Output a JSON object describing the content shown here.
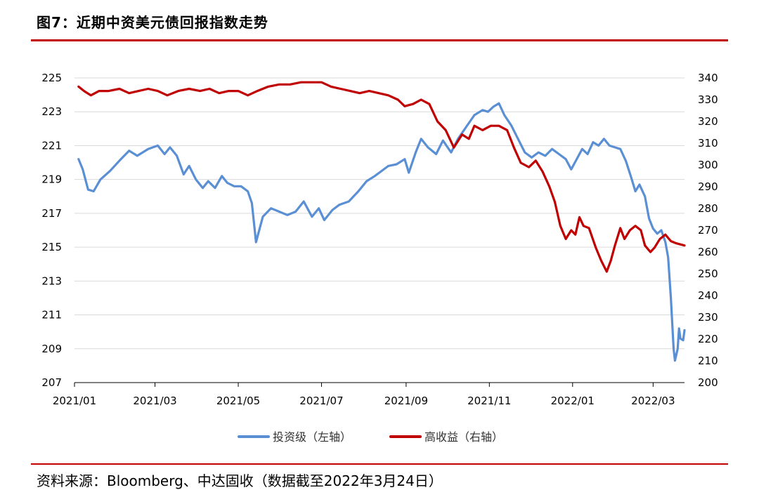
{
  "header": {
    "title": "图7：近期中资美元债回报指数走势"
  },
  "footer": {
    "source": "资料来源：Bloomberg、中达固收（数据截至2022年3月24日）"
  },
  "colors": {
    "accent_rule": "#c00000",
    "investment_grade": "#5b8fd4",
    "high_yield": "#c00000",
    "grid": "#d9d9d9"
  },
  "chart_data": {
    "type": "line",
    "title": "",
    "xlabel": "",
    "ylabel": "",
    "grid": true,
    "legend_position": "bottom-center",
    "x_ticks": [
      "2021/01",
      "2021/03",
      "2021/05",
      "2021/07",
      "2021/09",
      "2021/11",
      "2022/01",
      "2022/03"
    ],
    "x_tick_dates": [
      "2021-01-01",
      "2021-03-01",
      "2021-05-01",
      "2021-07-01",
      "2021-09-01",
      "2021-11-01",
      "2022-01-01",
      "2022-03-01"
    ],
    "x_range": [
      "2021-01-01",
      "2022-03-24"
    ],
    "y_left": {
      "range": [
        207,
        225
      ],
      "ticks": [
        "207",
        "209",
        "211",
        "213",
        "215",
        "217",
        "219",
        "221",
        "223",
        "225"
      ]
    },
    "y_right": {
      "range": [
        200,
        340
      ],
      "ticks": [
        "200",
        "210",
        "220",
        "230",
        "240",
        "250",
        "260",
        "270",
        "280",
        "290",
        "300",
        "310",
        "320",
        "330",
        "340"
      ]
    },
    "series": [
      {
        "name": "投资级（左轴）",
        "axis": "left",
        "points": [
          [
            "2021-01-04",
            220.2
          ],
          [
            "2021-01-07",
            219.6
          ],
          [
            "2021-01-11",
            218.4
          ],
          [
            "2021-01-15",
            218.3
          ],
          [
            "2021-01-20",
            219.0
          ],
          [
            "2021-01-27",
            219.5
          ],
          [
            "2021-02-04",
            220.2
          ],
          [
            "2021-02-10",
            220.7
          ],
          [
            "2021-02-16",
            220.4
          ],
          [
            "2021-02-24",
            220.8
          ],
          [
            "2021-03-03",
            221.0
          ],
          [
            "2021-03-08",
            220.5
          ],
          [
            "2021-03-12",
            220.9
          ],
          [
            "2021-03-17",
            220.4
          ],
          [
            "2021-03-22",
            219.3
          ],
          [
            "2021-03-26",
            219.8
          ],
          [
            "2021-03-31",
            219.0
          ],
          [
            "2021-04-05",
            218.5
          ],
          [
            "2021-04-09",
            218.9
          ],
          [
            "2021-04-14",
            218.5
          ],
          [
            "2021-04-19",
            219.2
          ],
          [
            "2021-04-23",
            218.8
          ],
          [
            "2021-04-28",
            218.6
          ],
          [
            "2021-05-03",
            218.6
          ],
          [
            "2021-05-08",
            218.3
          ],
          [
            "2021-05-11",
            217.6
          ],
          [
            "2021-05-14",
            215.3
          ],
          [
            "2021-05-19",
            216.8
          ],
          [
            "2021-05-25",
            217.3
          ],
          [
            "2021-05-31",
            217.1
          ],
          [
            "2021-06-06",
            216.9
          ],
          [
            "2021-06-12",
            217.1
          ],
          [
            "2021-06-18",
            217.7
          ],
          [
            "2021-06-24",
            216.8
          ],
          [
            "2021-06-29",
            217.3
          ],
          [
            "2021-07-03",
            216.6
          ],
          [
            "2021-07-09",
            217.2
          ],
          [
            "2021-07-14",
            217.5
          ],
          [
            "2021-07-21",
            217.7
          ],
          [
            "2021-07-28",
            218.3
          ],
          [
            "2021-08-03",
            218.9
          ],
          [
            "2021-08-09",
            219.2
          ],
          [
            "2021-08-14",
            219.5
          ],
          [
            "2021-08-19",
            219.8
          ],
          [
            "2021-08-25",
            219.9
          ],
          [
            "2021-08-31",
            220.2
          ],
          [
            "2021-09-03",
            219.4
          ],
          [
            "2021-09-08",
            220.6
          ],
          [
            "2021-09-12",
            221.4
          ],
          [
            "2021-09-17",
            220.9
          ],
          [
            "2021-09-23",
            220.5
          ],
          [
            "2021-09-28",
            221.3
          ],
          [
            "2021-10-04",
            220.6
          ],
          [
            "2021-10-09",
            221.4
          ],
          [
            "2021-10-15",
            222.1
          ],
          [
            "2021-10-21",
            222.8
          ],
          [
            "2021-10-27",
            223.1
          ],
          [
            "2021-10-31",
            223.0
          ],
          [
            "2021-11-04",
            223.3
          ],
          [
            "2021-11-08",
            223.5
          ],
          [
            "2021-11-12",
            222.8
          ],
          [
            "2021-11-17",
            222.2
          ],
          [
            "2021-11-22",
            221.4
          ],
          [
            "2021-11-27",
            220.6
          ],
          [
            "2021-12-02",
            220.3
          ],
          [
            "2021-12-07",
            220.6
          ],
          [
            "2021-12-12",
            220.4
          ],
          [
            "2021-12-17",
            220.8
          ],
          [
            "2021-12-22",
            220.5
          ],
          [
            "2021-12-27",
            220.2
          ],
          [
            "2021-12-31",
            219.6
          ],
          [
            "2022-01-04",
            220.2
          ],
          [
            "2022-01-08",
            220.8
          ],
          [
            "2022-01-12",
            220.5
          ],
          [
            "2022-01-16",
            221.2
          ],
          [
            "2022-01-20",
            221.0
          ],
          [
            "2022-01-24",
            221.4
          ],
          [
            "2022-01-28",
            221.0
          ],
          [
            "2022-02-01",
            220.9
          ],
          [
            "2022-02-05",
            220.8
          ],
          [
            "2022-02-09",
            220.1
          ],
          [
            "2022-02-13",
            219.1
          ],
          [
            "2022-02-16",
            218.3
          ],
          [
            "2022-02-19",
            218.7
          ],
          [
            "2022-02-23",
            218.0
          ],
          [
            "2022-02-26",
            216.7
          ],
          [
            "2022-03-01",
            216.1
          ],
          [
            "2022-03-04",
            215.8
          ],
          [
            "2022-03-07",
            216.0
          ],
          [
            "2022-03-10",
            215.3
          ],
          [
            "2022-03-12",
            214.4
          ],
          [
            "2022-03-14",
            212.0
          ],
          [
            "2022-03-16",
            209.0
          ],
          [
            "2022-03-17",
            208.3
          ],
          [
            "2022-03-19",
            209.0
          ],
          [
            "2022-03-20",
            210.2
          ],
          [
            "2022-03-21",
            209.6
          ],
          [
            "2022-03-23",
            209.5
          ],
          [
            "2022-03-24",
            210.1
          ]
        ]
      },
      {
        "name": "高收益（右轴）",
        "axis": "right",
        "points": [
          [
            "2021-01-04",
            336
          ],
          [
            "2021-01-08",
            334
          ],
          [
            "2021-01-13",
            332
          ],
          [
            "2021-01-19",
            334
          ],
          [
            "2021-01-26",
            334
          ],
          [
            "2021-02-03",
            335
          ],
          [
            "2021-02-10",
            333
          ],
          [
            "2021-02-17",
            334
          ],
          [
            "2021-02-24",
            335
          ],
          [
            "2021-03-03",
            334
          ],
          [
            "2021-03-10",
            332
          ],
          [
            "2021-03-18",
            334
          ],
          [
            "2021-03-26",
            335
          ],
          [
            "2021-04-03",
            334
          ],
          [
            "2021-04-10",
            335
          ],
          [
            "2021-04-17",
            333
          ],
          [
            "2021-04-24",
            334
          ],
          [
            "2021-05-01",
            334
          ],
          [
            "2021-05-08",
            332
          ],
          [
            "2021-05-15",
            334
          ],
          [
            "2021-05-23",
            336
          ],
          [
            "2021-05-31",
            337
          ],
          [
            "2021-06-08",
            337
          ],
          [
            "2021-06-16",
            338
          ],
          [
            "2021-06-24",
            338
          ],
          [
            "2021-07-01",
            338
          ],
          [
            "2021-07-08",
            336
          ],
          [
            "2021-07-15",
            335
          ],
          [
            "2021-07-22",
            334
          ],
          [
            "2021-07-29",
            333
          ],
          [
            "2021-08-05",
            334
          ],
          [
            "2021-08-12",
            333
          ],
          [
            "2021-08-19",
            332
          ],
          [
            "2021-08-26",
            330
          ],
          [
            "2021-08-31",
            327
          ],
          [
            "2021-09-06",
            328
          ],
          [
            "2021-09-12",
            330
          ],
          [
            "2021-09-18",
            328
          ],
          [
            "2021-09-24",
            320
          ],
          [
            "2021-09-30",
            316
          ],
          [
            "2021-10-06",
            308
          ],
          [
            "2021-10-12",
            314
          ],
          [
            "2021-10-17",
            312
          ],
          [
            "2021-10-21",
            318
          ],
          [
            "2021-10-27",
            316
          ],
          [
            "2021-11-02",
            318
          ],
          [
            "2021-11-08",
            318
          ],
          [
            "2021-11-14",
            316
          ],
          [
            "2021-11-19",
            308
          ],
          [
            "2021-11-24",
            301
          ],
          [
            "2021-11-30",
            299
          ],
          [
            "2021-12-05",
            302
          ],
          [
            "2021-12-10",
            297
          ],
          [
            "2021-12-15",
            290
          ],
          [
            "2021-12-19",
            283
          ],
          [
            "2021-12-23",
            272
          ],
          [
            "2021-12-27",
            266
          ],
          [
            "2021-12-31",
            270
          ],
          [
            "2022-01-03",
            268
          ],
          [
            "2022-01-06",
            276
          ],
          [
            "2022-01-09",
            272
          ],
          [
            "2022-01-13",
            271
          ],
          [
            "2022-01-18",
            262
          ],
          [
            "2022-01-22",
            256
          ],
          [
            "2022-01-26",
            251
          ],
          [
            "2022-01-29",
            256
          ],
          [
            "2022-02-01",
            263
          ],
          [
            "2022-02-05",
            271
          ],
          [
            "2022-02-08",
            266
          ],
          [
            "2022-02-12",
            270
          ],
          [
            "2022-02-16",
            272
          ],
          [
            "2022-02-20",
            270
          ],
          [
            "2022-02-23",
            263
          ],
          [
            "2022-02-27",
            260
          ],
          [
            "2022-03-02",
            262
          ],
          [
            "2022-03-06",
            266
          ],
          [
            "2022-03-10",
            268
          ],
          [
            "2022-03-14",
            265
          ],
          [
            "2022-03-18",
            264
          ],
          [
            "2022-03-24",
            263
          ]
        ]
      }
    ]
  }
}
